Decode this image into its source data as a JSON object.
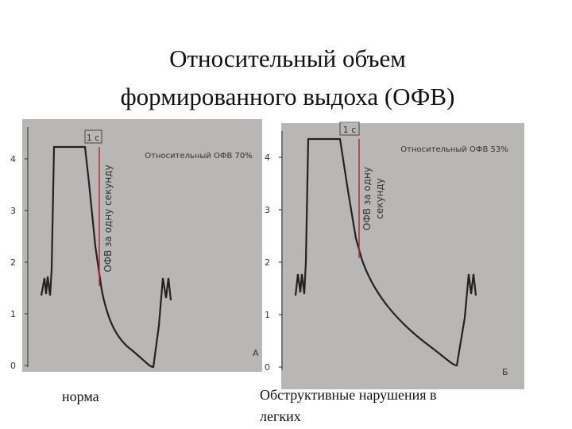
{
  "title": {
    "line1": "Относительный объем",
    "line2": "формированного выдоха (ОФВ)"
  },
  "panels": [
    {
      "second_label": "1 с",
      "fev_text": "Относительный ОФВ 70%",
      "rotated": [
        "ОФВ за одну секунду"
      ],
      "yticks": [
        "0",
        "1",
        "2",
        "3",
        "4"
      ],
      "letter": "А"
    },
    {
      "second_label": "1 с",
      "fev_text": "Относительный ОФВ 53%",
      "rotated": [
        "ОФВ за одну",
        "секунду"
      ],
      "yticks": [
        "0",
        "1",
        "2",
        "3",
        "4"
      ],
      "letter": "Б"
    }
  ],
  "captions": {
    "left": "норма",
    "right": [
      "Обструктивные нарушения в",
      "легких"
    ]
  }
}
